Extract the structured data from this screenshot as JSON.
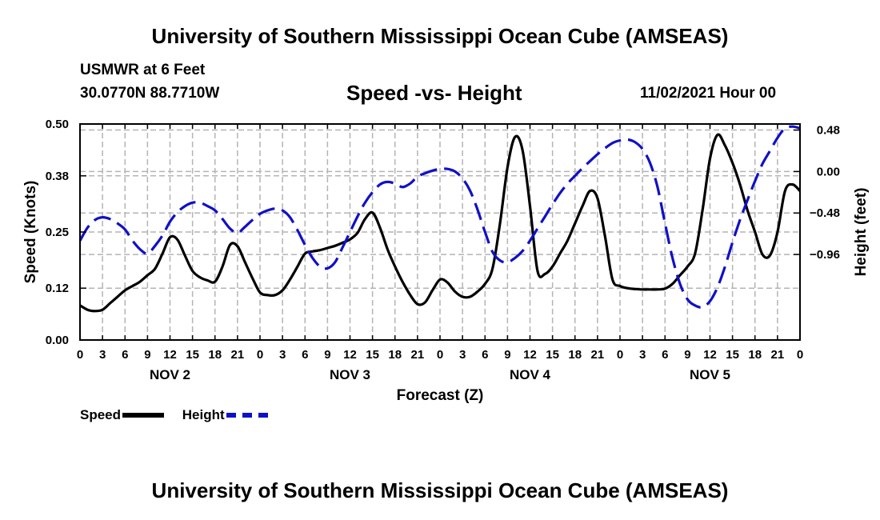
{
  "header": {
    "title": "University of Southern Mississippi Ocean Cube (AMSEAS)",
    "station": "USMWR at 6 Feet",
    "coords": "30.0770N  88.7710W",
    "subtitle": "Speed -vs- Height",
    "run": "11/02/2021 Hour 00"
  },
  "footer": {
    "title": "University of Southern Mississippi Ocean Cube (AMSEAS)"
  },
  "legend": {
    "speed": "Speed",
    "height": "Height"
  },
  "colors": {
    "speed": "#000000",
    "height": "#1010c8",
    "grid": "#b4b4b4"
  },
  "chart_data": {
    "type": "line",
    "title": "Speed -vs- Height",
    "xlabel": "Forecast (Z)",
    "ylabel_left": "Speed (Knots)",
    "ylabel_right": "Height (feet)",
    "x_hours_range": [
      0,
      96
    ],
    "x_tick_labels": [
      "0",
      "3",
      "6",
      "9",
      "12",
      "15",
      "18",
      "21",
      "0",
      "3",
      "6",
      "9",
      "12",
      "15",
      "18",
      "21",
      "0",
      "3",
      "6",
      "9",
      "12",
      "15",
      "18",
      "21",
      "0",
      "3",
      "6",
      "9",
      "12",
      "15",
      "18",
      "21",
      "0"
    ],
    "day_labels": [
      {
        "label": "NOV 2",
        "hour": 12
      },
      {
        "label": "NOV 3",
        "hour": 36
      },
      {
        "label": "NOV 4",
        "hour": 60
      },
      {
        "label": "NOV 5",
        "hour": 84
      }
    ],
    "y_left": {
      "range": [
        0,
        0.5
      ],
      "ticks": [
        0.0,
        0.12,
        0.25,
        0.38,
        0.5
      ],
      "tick_labels": [
        "0.00",
        "0.12",
        "0.25",
        "0.38",
        "0.50"
      ]
    },
    "y_right": {
      "range": [
        -1.95,
        0.55
      ],
      "ticks": [
        0.48,
        0.0,
        -0.48,
        -0.96
      ],
      "tick_labels": [
        "0.48",
        "0.00",
        "−0.48",
        "−0.96"
      ]
    },
    "series": [
      {
        "name": "Speed",
        "axis": "left",
        "style": "solid",
        "x": [
          0,
          1,
          2,
          3,
          4,
          5,
          6,
          7,
          8,
          9,
          10,
          11,
          12,
          13,
          14,
          15,
          16,
          17,
          18,
          19,
          20,
          21,
          22,
          23,
          24,
          25,
          26,
          27,
          28,
          29,
          30,
          31,
          32,
          33,
          34,
          35,
          36,
          37,
          38,
          39,
          40,
          41,
          42,
          43,
          44,
          45,
          46,
          47,
          48,
          49,
          50,
          51,
          52,
          53,
          54,
          55,
          56,
          57,
          58,
          59,
          60,
          61,
          62,
          63,
          64,
          65,
          66,
          67,
          68,
          69,
          70,
          71,
          72,
          73,
          74,
          75,
          76,
          77,
          78,
          79,
          80,
          81,
          82,
          83,
          84,
          85,
          86,
          87,
          88,
          89,
          90,
          91,
          92,
          93,
          94,
          95,
          96
        ],
        "values": [
          0.08,
          0.07,
          0.067,
          0.07,
          0.085,
          0.1,
          0.115,
          0.125,
          0.135,
          0.15,
          0.165,
          0.2,
          0.238,
          0.232,
          0.195,
          0.16,
          0.145,
          0.138,
          0.135,
          0.17,
          0.22,
          0.217,
          0.18,
          0.143,
          0.11,
          0.104,
          0.104,
          0.115,
          0.14,
          0.17,
          0.2,
          0.205,
          0.208,
          0.213,
          0.218,
          0.225,
          0.233,
          0.248,
          0.28,
          0.295,
          0.26,
          0.21,
          0.17,
          0.135,
          0.105,
          0.083,
          0.087,
          0.115,
          0.14,
          0.133,
          0.112,
          0.1,
          0.1,
          0.112,
          0.13,
          0.165,
          0.27,
          0.4,
          0.47,
          0.44,
          0.31,
          0.16,
          0.153,
          0.17,
          0.2,
          0.23,
          0.27,
          0.31,
          0.345,
          0.328,
          0.24,
          0.14,
          0.125,
          0.12,
          0.118,
          0.117,
          0.117,
          0.117,
          0.119,
          0.13,
          0.15,
          0.17,
          0.2,
          0.3,
          0.42,
          0.475,
          0.45,
          0.41,
          0.36,
          0.3,
          0.25,
          0.198,
          0.196,
          0.25,
          0.345,
          0.36,
          0.345
        ]
      },
      {
        "name": "Height",
        "axis": "right",
        "style": "dashed",
        "x": [
          0,
          1,
          2,
          3,
          4,
          5,
          6,
          7,
          8,
          9,
          10,
          11,
          12,
          13,
          14,
          15,
          16,
          17,
          18,
          19,
          20,
          21,
          22,
          23,
          24,
          25,
          26,
          27,
          28,
          29,
          30,
          31,
          32,
          33,
          34,
          35,
          36,
          37,
          38,
          39,
          40,
          41,
          42,
          43,
          44,
          45,
          46,
          47,
          48,
          49,
          50,
          51,
          52,
          53,
          54,
          55,
          56,
          57,
          58,
          59,
          60,
          61,
          62,
          63,
          64,
          65,
          66,
          67,
          68,
          69,
          70,
          71,
          72,
          73,
          74,
          75,
          76,
          77,
          78,
          79,
          80,
          81,
          82,
          83,
          84,
          85,
          86,
          87,
          88,
          89,
          90,
          91,
          92,
          93,
          94,
          95,
          96
        ],
        "values": [
          -0.8,
          -0.65,
          -0.56,
          -0.53,
          -0.55,
          -0.6,
          -0.67,
          -0.8,
          -0.9,
          -0.95,
          -0.86,
          -0.74,
          -0.58,
          -0.47,
          -0.4,
          -0.36,
          -0.36,
          -0.4,
          -0.45,
          -0.55,
          -0.66,
          -0.71,
          -0.64,
          -0.56,
          -0.49,
          -0.45,
          -0.43,
          -0.45,
          -0.53,
          -0.68,
          -0.85,
          -1.0,
          -1.1,
          -1.12,
          -1.05,
          -0.88,
          -0.7,
          -0.52,
          -0.36,
          -0.24,
          -0.15,
          -0.12,
          -0.14,
          -0.18,
          -0.14,
          -0.06,
          -0.02,
          0.01,
          0.03,
          0.03,
          0.0,
          -0.08,
          -0.22,
          -0.44,
          -0.7,
          -0.93,
          -1.03,
          -1.05,
          -1.0,
          -0.92,
          -0.8,
          -0.66,
          -0.52,
          -0.38,
          -0.25,
          -0.14,
          -0.05,
          0.04,
          0.12,
          0.2,
          0.27,
          0.33,
          0.36,
          0.37,
          0.34,
          0.26,
          0.1,
          -0.18,
          -0.6,
          -1.0,
          -1.3,
          -1.48,
          -1.55,
          -1.57,
          -1.5,
          -1.34,
          -1.1,
          -0.82,
          -0.56,
          -0.33,
          -0.11,
          0.09,
          0.24,
          0.39,
          0.5,
          0.52,
          0.5
        ]
      }
    ]
  }
}
